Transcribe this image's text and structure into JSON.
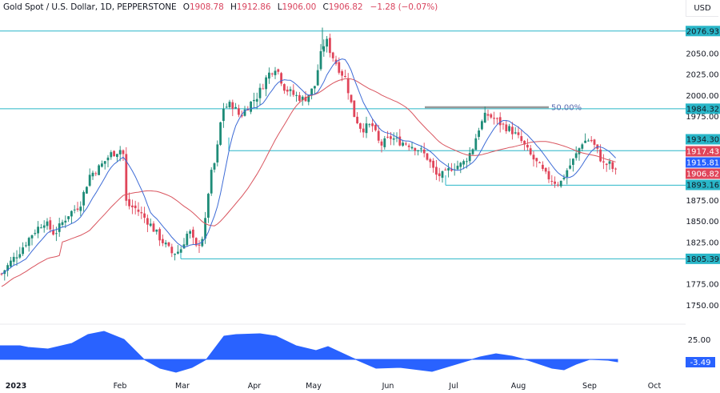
{
  "header": {
    "symbol_title": "Gold Spot / U.S. Dollar, 1D, PEPPERSTONE",
    "open_label": "O",
    "open": "1908.78",
    "high_label": "H",
    "high": "1912.86",
    "low_label": "L",
    "low": "1906.00",
    "close_label": "C",
    "close": "1906.82",
    "change": "−1.28 (−0.07%)"
  },
  "currency": "USD",
  "colors": {
    "up": "#26a69a",
    "up_body": "#1e8c78",
    "down": "#e0455a",
    "fast_ma": "#3d6bd6",
    "slow_ma": "#d9555f",
    "level_line": "#29b6c8",
    "fib_line": "#9a9a9a",
    "oscillator": "#2962ff",
    "price_tag_blue": "#2962ff"
  },
  "price_axis": {
    "ticks": [
      "2050.00",
      "2025.00",
      "2000.00",
      "1975.00",
      "1875.00",
      "1850.00",
      "1825.00",
      "1775.00",
      "1750.00"
    ],
    "tags": [
      {
        "value": "2076.93",
        "kind": "level"
      },
      {
        "value": "1984.32",
        "kind": "level"
      },
      {
        "value": "1934.30",
        "kind": "level"
      },
      {
        "value": "1917.43",
        "kind": "slow_ma"
      },
      {
        "value": "1915.81",
        "kind": "fast_ma"
      },
      {
        "value": "1906.82",
        "kind": "last"
      },
      {
        "value": "1893.16",
        "kind": "level"
      },
      {
        "value": "1805.39",
        "kind": "level"
      }
    ]
  },
  "fib_label": "50.00%",
  "time_axis": [
    "2023",
    "Feb",
    "Mar",
    "Apr",
    "May",
    "Jun",
    "Jul",
    "Aug",
    "Sep",
    "Oct"
  ],
  "oscillator": {
    "tick": "25.00",
    "last": "-3.49"
  },
  "chart_data": [
    {
      "type": "candlestick",
      "title": "Gold Spot / U.S. Dollar, 1D, PEPPERSTONE",
      "xlabel": "",
      "ylabel": "USD",
      "x_ticks": [
        "2023",
        "Feb",
        "Mar",
        "Apr",
        "May",
        "Jun",
        "Jul",
        "Aug",
        "Sep",
        "Oct"
      ],
      "y_ticks": [
        1750,
        1775,
        1825,
        1850,
        1875,
        2000,
        2025,
        2050
      ],
      "ylim": [
        1740,
        2090
      ],
      "grid": false,
      "last_bar": {
        "open": 1908.78,
        "high": 1912.86,
        "low": 1906.0,
        "close": 1906.82,
        "change": -1.28,
        "change_pct": -0.07
      },
      "horizontal_levels": [
        2076.93,
        1984.32,
        1934.3,
        1893.16,
        1805.39
      ],
      "fib_level": {
        "label": "50.00%",
        "value": 1984.32
      },
      "moving_averages": [
        {
          "name": "fast MA",
          "color": "#3d6bd6",
          "last": 1915.81
        },
        {
          "name": "slow MA",
          "color": "#d9555f",
          "last": 1917.43
        }
      ],
      "close_path_approx": [
        {
          "x": "Jan start",
          "close": 1826
        },
        {
          "x": "mid Jan",
          "close": 1900
        },
        {
          "x": "end Jan",
          "close": 1945
        },
        {
          "x": "early Feb",
          "close": 1865
        },
        {
          "x": "late Feb",
          "close": 1815
        },
        {
          "x": "early Mar",
          "close": 1810
        },
        {
          "x": "mid Mar",
          "close": 1990
        },
        {
          "x": "Apr",
          "close": 2005
        },
        {
          "x": "mid Apr",
          "close": 2040
        },
        {
          "x": "early May",
          "close": 2050
        },
        {
          "x": "May high",
          "close": 2076.93
        },
        {
          "x": "late May",
          "close": 1945
        },
        {
          "x": "Jun",
          "close": 1925
        },
        {
          "x": "late Jun",
          "close": 1905
        },
        {
          "x": "early Jul",
          "close": 1925
        },
        {
          "x": "mid Jul",
          "close": 1975
        },
        {
          "x": "late Jul",
          "close": 1945
        },
        {
          "x": "mid Aug",
          "close": 1895
        },
        {
          "x": "late Aug",
          "close": 1918
        },
        {
          "x": "early Sep",
          "close": 1935
        },
        {
          "x": "mid Sep",
          "close": 1906.82
        }
      ]
    },
    {
      "type": "area",
      "title": "Oscillator",
      "y_ticks": [
        25.0
      ],
      "last": -3.49,
      "color": "#2962ff"
    }
  ]
}
